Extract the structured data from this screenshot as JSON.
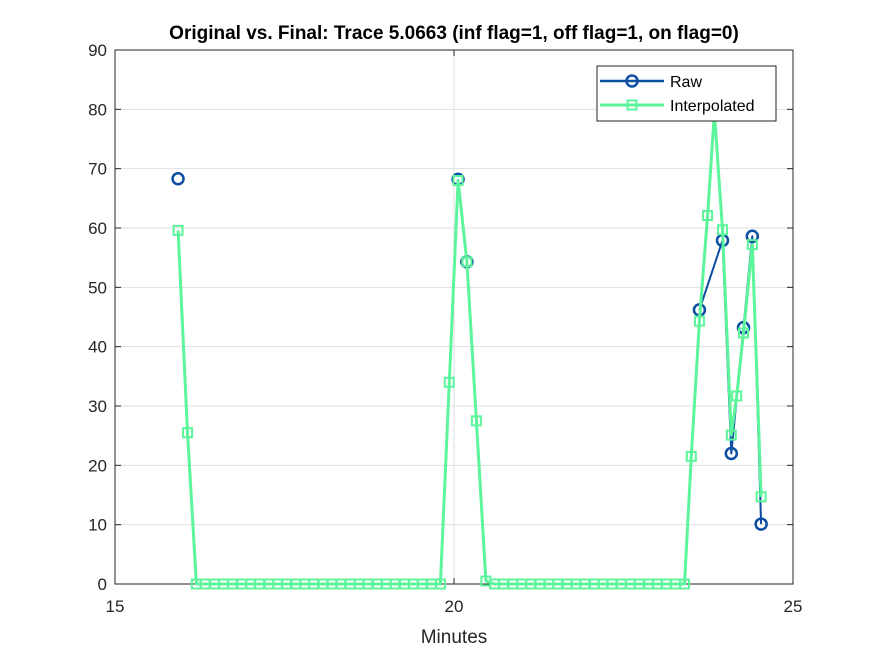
{
  "chart_data": {
    "type": "line",
    "title": "Original vs. Final: Trace 5.0663 (inf flag=1, off flag=1, on flag=0)",
    "xlabel": "Minutes",
    "ylabel": "",
    "xlim": [
      15,
      25
    ],
    "ylim": [
      0,
      90
    ],
    "xticks": [
      15,
      20,
      25
    ],
    "yticks": [
      0,
      10,
      20,
      30,
      40,
      50,
      60,
      70,
      80,
      90
    ],
    "grid": true,
    "legend_position": "top-right",
    "series": [
      {
        "name": "Raw",
        "color": "#0b4ea2",
        "marker": "circle",
        "x": [
          15.93,
          20.06,
          20.19,
          23.62,
          23.96,
          24.09,
          24.27,
          24.4,
          24.53
        ],
        "y": [
          68.3,
          68.2,
          54.3,
          46.2,
          57.9,
          22.0,
          43.2,
          58.6,
          10.1
        ],
        "segments": [
          [
            0
          ],
          [
            1,
            2
          ],
          [
            3,
            4,
            5,
            6,
            7,
            8
          ]
        ]
      },
      {
        "name": "Interpolated",
        "color": "#5cf59b",
        "marker": "square",
        "x": [
          15.93,
          16.07,
          16.2,
          16.33,
          16.47,
          16.6,
          16.73,
          16.87,
          17.0,
          17.13,
          17.27,
          17.4,
          17.53,
          17.67,
          17.8,
          17.93,
          18.07,
          18.2,
          18.33,
          18.47,
          18.6,
          18.73,
          18.87,
          19.0,
          19.13,
          19.27,
          19.4,
          19.53,
          19.67,
          19.8,
          19.93,
          20.06,
          20.19,
          20.33,
          20.47,
          20.6,
          20.73,
          20.87,
          21.0,
          21.13,
          21.27,
          21.4,
          21.53,
          21.67,
          21.8,
          21.93,
          22.07,
          22.2,
          22.33,
          22.47,
          22.6,
          22.73,
          22.87,
          23.0,
          23.13,
          23.27,
          23.4,
          23.5,
          23.62,
          23.74,
          23.84,
          23.96,
          24.09,
          24.17,
          24.27,
          24.4,
          24.53
        ],
        "y": [
          59.6,
          25.5,
          0,
          0,
          0,
          0,
          0,
          0,
          0,
          0,
          0,
          0,
          0,
          0,
          0,
          0,
          0,
          0,
          0,
          0,
          0,
          0,
          0,
          0,
          0,
          0,
          0,
          0,
          0,
          0,
          34.0,
          68.0,
          54.3,
          27.5,
          0.5,
          0,
          0,
          0,
          0,
          0,
          0,
          0,
          0,
          0,
          0,
          0,
          0,
          0,
          0,
          0,
          0,
          0,
          0,
          0,
          0,
          0,
          0,
          21.5,
          44.3,
          62.1,
          79.5,
          59.7,
          25.1,
          31.7,
          42.3,
          57.2,
          14.7
        ]
      }
    ]
  }
}
